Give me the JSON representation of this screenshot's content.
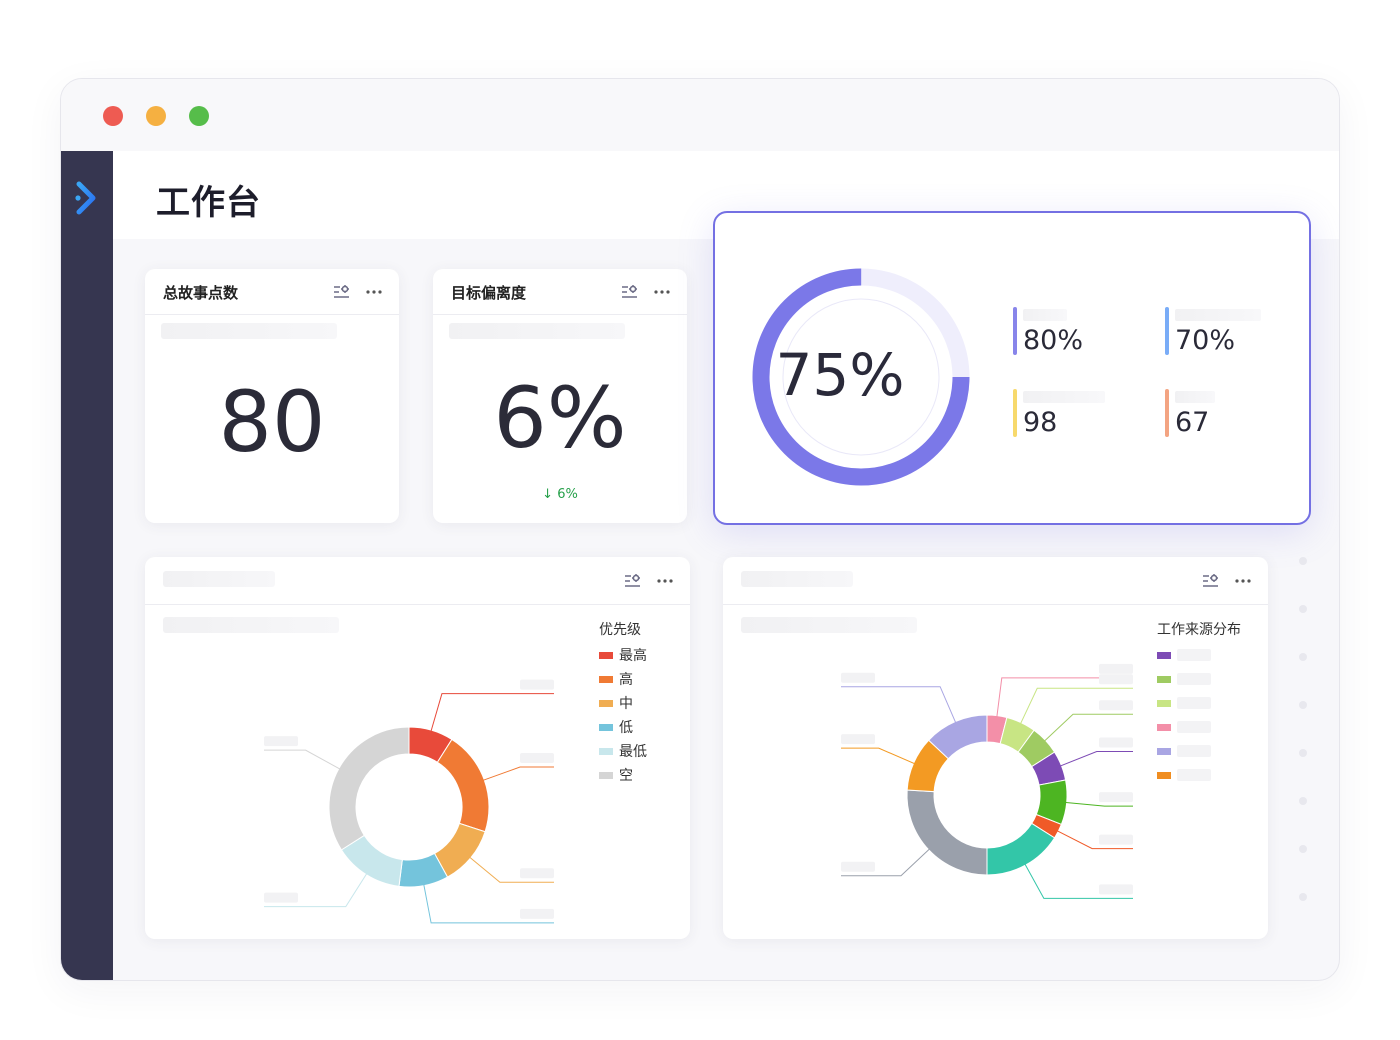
{
  "window": {
    "controls": [
      "close",
      "minimize",
      "maximize"
    ],
    "colors": {
      "close": "#ee5b52",
      "minimize": "#f5b041",
      "maximize": "#56bd4a"
    }
  },
  "sidebar": {
    "logo_icon": "app-logo-icon",
    "background": "#363650"
  },
  "header": {
    "title": "工作台"
  },
  "cards": {
    "total_incidents": {
      "title": "总故事点数",
      "value": "80",
      "tools": [
        "settings-list-icon",
        "more-icon"
      ]
    },
    "goal_deviation": {
      "title": "目标偏离度",
      "value": "6%",
      "delta": "↓ 6%",
      "tools": [
        "settings-list-icon",
        "more-icon"
      ]
    }
  },
  "highlight": {
    "gauge": {
      "value": "75%",
      "percent": 75,
      "color": "#7b78e8"
    },
    "stats": [
      {
        "value": "80%",
        "color": "#7b78e8"
      },
      {
        "value": "70%",
        "color": "#6aa3f6"
      },
      {
        "value": "98",
        "color": "#f6d55c"
      },
      {
        "value": "67",
        "color": "#f29a74"
      }
    ],
    "border_color": "#7470e3"
  },
  "priority_chart": {
    "legend_title": "优先级",
    "legend": [
      {
        "label": "最高",
        "color": "#e84a3a"
      },
      {
        "label": "高",
        "color": "#f07a34"
      },
      {
        "label": "中",
        "color": "#f0ad52"
      },
      {
        "label": "低",
        "color": "#74c4dc"
      },
      {
        "label": "最低",
        "color": "#c8e7ec"
      },
      {
        "label": "空",
        "color": "#d5d5d5"
      }
    ],
    "tools": [
      "settings-list-icon",
      "more-icon"
    ]
  },
  "source_chart": {
    "legend_title": "工作来源分布",
    "legend_colors": [
      "#7d4bb5",
      "#9fcb62",
      "#c8e584",
      "#f38fa8",
      "#a9a6e3",
      "#f08d20"
    ],
    "tools": [
      "settings-list-icon",
      "more-icon"
    ]
  },
  "chart_data": [
    {
      "type": "pie",
      "title": "",
      "legend_title": "优先级",
      "categories": [
        "最高",
        "高",
        "中",
        "低",
        "最低",
        "空"
      ],
      "values": [
        9,
        21,
        12,
        10,
        14,
        34
      ],
      "colors": [
        "#e84a3a",
        "#f07a34",
        "#f0ad52",
        "#74c4dc",
        "#c8e7ec",
        "#d5d5d5"
      ],
      "donut": true,
      "legend": "right"
    },
    {
      "type": "pie",
      "title": "",
      "legend_title": "工作来源分布",
      "values": [
        4,
        6,
        6,
        6,
        9,
        3,
        16,
        26,
        11,
        13
      ],
      "colors": [
        "#f38fa8",
        "#c8e584",
        "#9fcb62",
        "#7d4bb5",
        "#4db522",
        "#f05a28",
        "#33c6a8",
        "#9aa0ab",
        "#f39a23",
        "#a9a6e3"
      ],
      "donut": true,
      "legend": "right"
    }
  ]
}
